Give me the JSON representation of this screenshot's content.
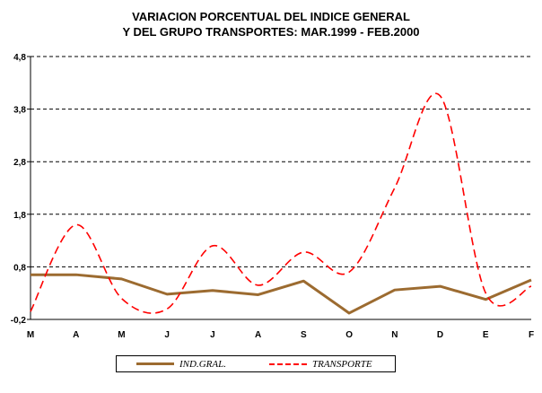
{
  "chart_data": {
    "type": "line",
    "title": [
      "VARIACION PORCENTUAL DEL INDICE GENERAL",
      "Y DEL GRUPO TRANSPORTES: MAR.1999 - FEB.2000"
    ],
    "categories": [
      "M",
      "A",
      "M",
      "J",
      "J",
      "A",
      "S",
      "O",
      "N",
      "D",
      "E",
      "F"
    ],
    "yticks": [
      "4,8",
      "3,8",
      "2,8",
      "1,8",
      "0,8",
      "-0,2"
    ],
    "ylim": [
      -0.2,
      4.8
    ],
    "ytick_values": [
      4.8,
      3.8,
      2.8,
      1.8,
      0.8,
      -0.2
    ],
    "grid": "horizontal dashed",
    "legend_position": "bottom",
    "series": [
      {
        "name": "IND.GRAL.",
        "color": "#9C6B30",
        "style": "solid",
        "smooth": false,
        "values": [
          0.65,
          0.65,
          0.57,
          0.28,
          0.35,
          0.27,
          0.53,
          -0.08,
          0.36,
          0.43,
          0.18,
          0.55
        ]
      },
      {
        "name": "TRANSPORTE",
        "color": "#FF0000",
        "style": "dashed",
        "smooth": true,
        "values": [
          -0.05,
          1.6,
          0.2,
          0.0,
          1.2,
          0.45,
          1.08,
          0.7,
          2.3,
          4.05,
          0.3,
          0.43
        ]
      }
    ]
  }
}
